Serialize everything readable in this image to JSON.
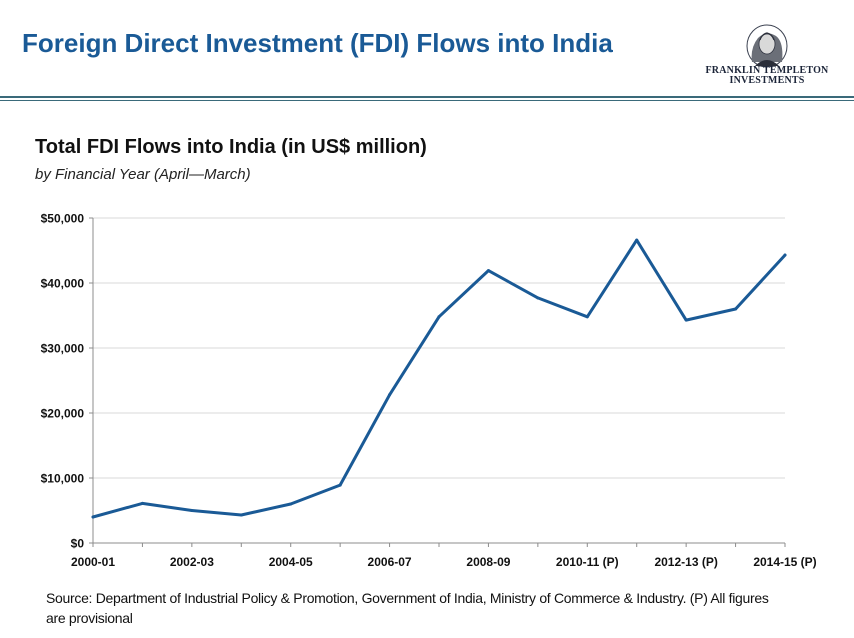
{
  "header": {
    "title": "Foreign Direct Investment (FDI) Flows into India",
    "logo_text_line1": "FRANKLIN TEMPLETON",
    "logo_text_line2": "INVESTMENTS",
    "accent_color": "#1a5a96"
  },
  "chart_data": {
    "type": "line",
    "title": "Total FDI Flows into India (in US$ million)",
    "subtitle": "by Financial Year (April—March)",
    "x": [
      "2000-01",
      "2001-02",
      "2002-03",
      "2003-04",
      "2004-05",
      "2005-06",
      "2006-07",
      "2007-08",
      "2008-09",
      "2009-10",
      "2010-11 (P)",
      "2011-12 (P)",
      "2012-13 (P)",
      "2013-14 (P)",
      "2014-15 (P)"
    ],
    "tick_labels": [
      "2000-01",
      "2002-03",
      "2004-05",
      "2006-07",
      "2008-09",
      "2010-11 (P)",
      "2012-13 (P)",
      "2014-15 (P)"
    ],
    "series": [
      {
        "values": [
          4000,
          6100,
          5000,
          4300,
          6000,
          8900,
          22800,
          34800,
          41900,
          37700,
          34800,
          46600,
          34300,
          36000,
          44300
        ],
        "color": "#1a5a96"
      }
    ],
    "ylim": [
      0,
      50000
    ],
    "y_ticks": [
      0,
      10000,
      20000,
      30000,
      40000,
      50000
    ],
    "y_tick_labels": [
      "$0",
      "$10,000",
      "$20,000",
      "$30,000",
      "$40,000",
      "$50,000"
    ],
    "grid": true,
    "legend": "none"
  },
  "footer": {
    "source": "Source: Department of Industrial Policy & Promotion, Government of India, Ministry of Commerce & Industry. (P) All figures are provisional"
  }
}
